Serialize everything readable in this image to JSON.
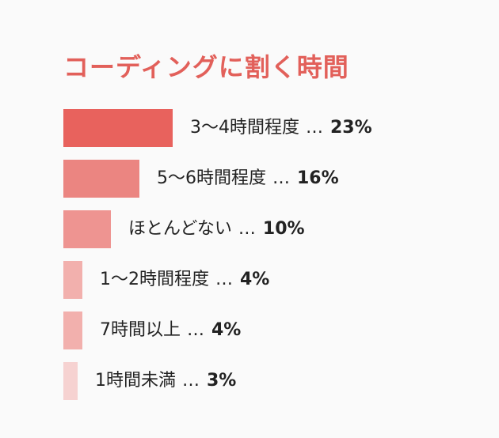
{
  "chart_data": {
    "type": "bar",
    "orientation": "horizontal",
    "title": "コーディングに割く時間",
    "categories": [
      "3〜4時間程度",
      "5〜6時間程度",
      "ほとんどない",
      "1〜2時間程度",
      "7時間以上",
      "1時間未満"
    ],
    "values": [
      23,
      16,
      10,
      4,
      4,
      3
    ],
    "unit": "%",
    "separator": "…",
    "colors": [
      "#e8625d",
      "#eb8581",
      "#ee9491",
      "#f2b0ad",
      "#f2b0ad",
      "#f6d2d1"
    ]
  }
}
